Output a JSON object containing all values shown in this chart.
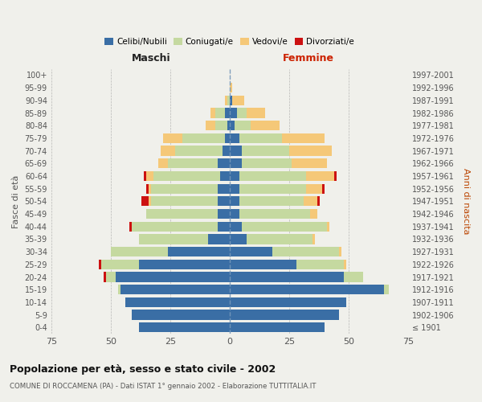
{
  "age_groups": [
    "100+",
    "95-99",
    "90-94",
    "85-89",
    "80-84",
    "75-79",
    "70-74",
    "65-69",
    "60-64",
    "55-59",
    "50-54",
    "45-49",
    "40-44",
    "35-39",
    "30-34",
    "25-29",
    "20-24",
    "15-19",
    "10-14",
    "5-9",
    "0-4"
  ],
  "birth_years": [
    "≤ 1901",
    "1902-1906",
    "1907-1911",
    "1912-1916",
    "1917-1921",
    "1922-1926",
    "1927-1931",
    "1932-1936",
    "1937-1941",
    "1942-1946",
    "1947-1951",
    "1952-1956",
    "1957-1961",
    "1962-1966",
    "1967-1971",
    "1972-1976",
    "1977-1981",
    "1982-1986",
    "1987-1991",
    "1992-1996",
    "1997-2001"
  ],
  "male_celibe": [
    0,
    0,
    0,
    2,
    1,
    2,
    3,
    5,
    4,
    5,
    5,
    5,
    5,
    9,
    26,
    38,
    48,
    46,
    44,
    41,
    38
  ],
  "male_coniugato": [
    0,
    0,
    1,
    4,
    5,
    18,
    20,
    21,
    28,
    28,
    28,
    30,
    36,
    29,
    24,
    16,
    4,
    1,
    0,
    0,
    0
  ],
  "male_vedovo": [
    0,
    0,
    1,
    2,
    4,
    8,
    6,
    4,
    3,
    1,
    1,
    0,
    0,
    0,
    0,
    0,
    0,
    0,
    0,
    0,
    0
  ],
  "male_divorziato": [
    0,
    0,
    0,
    0,
    0,
    0,
    0,
    0,
    1,
    1,
    3,
    0,
    1,
    0,
    0,
    1,
    1,
    0,
    0,
    0,
    0
  ],
  "female_celibe": [
    0,
    0,
    1,
    3,
    2,
    4,
    5,
    5,
    4,
    4,
    4,
    4,
    5,
    7,
    18,
    28,
    48,
    65,
    49,
    46,
    40
  ],
  "female_coniugata": [
    0,
    0,
    0,
    4,
    7,
    18,
    20,
    21,
    28,
    28,
    27,
    30,
    36,
    28,
    28,
    20,
    8,
    2,
    0,
    0,
    0
  ],
  "female_vedova": [
    0,
    1,
    5,
    8,
    12,
    18,
    18,
    15,
    12,
    7,
    6,
    3,
    1,
    1,
    1,
    1,
    0,
    0,
    0,
    0,
    0
  ],
  "female_divorziata": [
    0,
    0,
    0,
    0,
    0,
    0,
    0,
    0,
    1,
    1,
    1,
    0,
    0,
    0,
    0,
    0,
    0,
    0,
    0,
    0,
    0
  ],
  "color_celibe": "#3a6ea5",
  "color_coniugato": "#c5d9a0",
  "color_vedovo": "#f5c878",
  "color_divorziato": "#cc1111",
  "title": "Popolazione per età, sesso e stato civile - 2002",
  "subtitle": "COMUNE DI ROCCAMENA (PA) - Dati ISTAT 1° gennaio 2002 - Elaborazione TUTTITALIA.IT",
  "xlabel_left": "Maschi",
  "xlabel_right": "Femmine",
  "ylabel_left": "Fasce di età",
  "ylabel_right": "Anni di nascita",
  "xlim": 75,
  "bg_color": "#f0f0eb",
  "legend_labels": [
    "Celibi/Nubili",
    "Coniugati/e",
    "Vedovi/e",
    "Divorziati/e"
  ]
}
